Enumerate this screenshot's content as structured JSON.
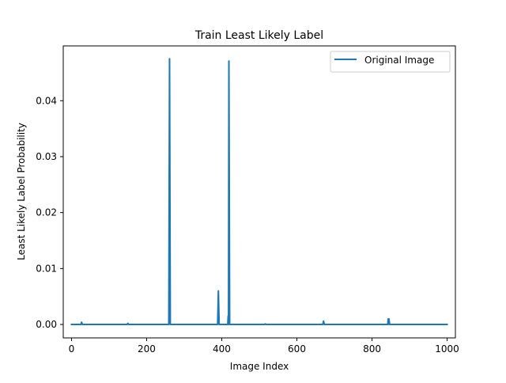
{
  "chart_data": {
    "type": "line",
    "title": "Train Least Likely Label",
    "xlabel": "Image Index",
    "ylabel": "Least Likely Label Probability",
    "xlim": [
      -22,
      1022
    ],
    "ylim": [
      -0.0024,
      0.0498
    ],
    "x_ticks": [
      0,
      200,
      400,
      600,
      800,
      1000
    ],
    "x_tick_labels": [
      "0",
      "200",
      "400",
      "600",
      "800",
      "1000"
    ],
    "y_ticks": [
      0.0,
      0.01,
      0.02,
      0.03,
      0.04
    ],
    "y_tick_labels": [
      "0.00",
      "0.01",
      "0.02",
      "0.03",
      "0.04"
    ],
    "grid": false,
    "legend_position": "top-right",
    "series": [
      {
        "name": "Original Image",
        "color": "#1f77b4",
        "points": [
          [
            0,
            0.0
          ],
          [
            25,
            0.0
          ],
          [
            27,
            0.0004
          ],
          [
            29,
            0.0
          ],
          [
            148,
            0.0
          ],
          [
            150,
            0.0002
          ],
          [
            152,
            0.0
          ],
          [
            259,
            0.0
          ],
          [
            261,
            0.0475
          ],
          [
            263,
            0.0
          ],
          [
            389,
            0.0
          ],
          [
            391,
            0.006
          ],
          [
            393,
            0.0
          ],
          [
            416,
            0.0
          ],
          [
            417,
            0.0015
          ],
          [
            418,
            0.0
          ],
          [
            419,
            0.0471
          ],
          [
            421,
            0.0
          ],
          [
            514,
            0.0
          ],
          [
            516,
            0.0001
          ],
          [
            518,
            0.0
          ],
          [
            669,
            0.0
          ],
          [
            671,
            0.0006
          ],
          [
            673,
            0.0
          ],
          [
            842,
            0.0
          ],
          [
            843,
            0.001
          ],
          [
            844,
            0.0
          ],
          [
            845,
            0.001
          ],
          [
            847,
            0.0
          ],
          [
            1000,
            0.0
          ]
        ]
      }
    ]
  }
}
